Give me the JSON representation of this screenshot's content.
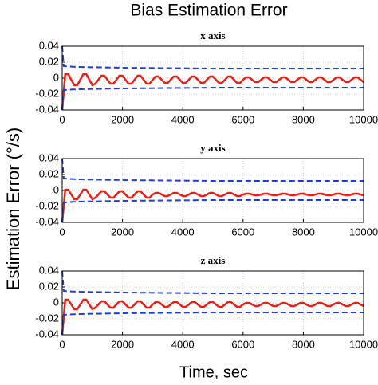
{
  "figure": {
    "title": "Bias Estimation Error",
    "ylabel": "Estimation Error (°/s)",
    "xlabel": "Time, sec"
  },
  "chart_data": [
    {
      "type": "line",
      "title": "x axis",
      "xlim": [
        0,
        10000
      ],
      "xticks": [
        0,
        2000,
        4000,
        6000,
        8000,
        10000
      ],
      "ylim": [
        -0.04,
        0.04
      ],
      "yticks": [
        -0.04,
        -0.02,
        0,
        0.02,
        0.04
      ],
      "grid": true,
      "series": [
        {
          "color": "#e8201a",
          "style": "solid",
          "x": [
            0,
            100,
            200,
            300,
            400,
            500,
            600,
            700,
            800,
            900,
            1000,
            1100,
            1200,
            1300,
            1400,
            1500,
            1600,
            1700,
            1800,
            1900,
            2000,
            2100,
            2200,
            2300,
            2400,
            2500,
            2600,
            2700,
            2800,
            2900,
            3000,
            3100,
            3200,
            3300,
            3400,
            3500,
            3600,
            3700,
            3800,
            3900,
            4000,
            4100,
            4200,
            4300,
            4400,
            4500,
            4600,
            4700,
            4800,
            4900,
            5000,
            5100,
            5200,
            5300,
            5400,
            5500,
            5600,
            5700,
            5800,
            5900,
            6000,
            6100,
            6200,
            6300,
            6400,
            6500,
            6600,
            6700,
            6800,
            6900,
            7000,
            7100,
            7200,
            7300,
            7400,
            7500,
            7600,
            7700,
            7800,
            7900,
            8000,
            8100,
            8200,
            8300,
            8400,
            8500,
            8600,
            8700,
            8800,
            8900,
            9000,
            9100,
            9200,
            9300,
            9400,
            9500,
            9600,
            9700,
            9800,
            9900,
            10000
          ],
          "values": [
            -0.04,
            0.005,
            0.005,
            -0.002,
            -0.009,
            -0.009,
            -0.002,
            0.005,
            0.005,
            -0.002,
            -0.009,
            -0.007,
            -0.002,
            0.003,
            0.003,
            -0.002,
            -0.007,
            -0.007,
            -0.002,
            0.003,
            0.003,
            -0.002,
            -0.007,
            -0.007,
            -0.002,
            0.003,
            0.003,
            -0.002,
            -0.007,
            -0.007,
            -0.002,
            0.002,
            0.002,
            -0.002,
            -0.006,
            -0.006,
            -0.002,
            0.002,
            0.002,
            -0.002,
            -0.006,
            -0.006,
            -0.002,
            0.002,
            0.002,
            -0.002,
            -0.006,
            -0.006,
            -0.002,
            0.002,
            0.002,
            -0.002,
            -0.006,
            -0.006,
            -0.002,
            0.002,
            0.002,
            -0.002,
            -0.006,
            -0.006,
            -0.002,
            0.001,
            0.001,
            -0.002,
            -0.005,
            -0.005,
            -0.002,
            0.001,
            0.001,
            -0.002,
            -0.005,
            -0.005,
            -0.002,
            0.001,
            0.001,
            -0.002,
            -0.005,
            -0.005,
            -0.002,
            0.001,
            0.001,
            -0.002,
            -0.005,
            -0.005,
            -0.002,
            0.001,
            0.001,
            -0.002,
            -0.005,
            -0.005,
            -0.002,
            0.001,
            0.001,
            -0.002,
            -0.005,
            -0.005,
            -0.002,
            0.001,
            0.001,
            -0.002,
            -0.005
          ]
        },
        {
          "color": "#1f3fd9",
          "style": "dashed",
          "x": [
            0,
            50,
            500,
            2000,
            5000,
            10000
          ],
          "values": [
            0.04,
            0.015,
            0.014,
            0.013,
            0.012,
            0.012
          ]
        },
        {
          "color": "#1f3fd9",
          "style": "dashed",
          "x": [
            0,
            50,
            500,
            2000,
            5000,
            10000
          ],
          "values": [
            -0.04,
            -0.015,
            -0.014,
            -0.013,
            -0.012,
            -0.012
          ]
        }
      ]
    },
    {
      "type": "line",
      "title": "y axis",
      "xlim": [
        0,
        10000
      ],
      "xticks": [
        0,
        2000,
        4000,
        6000,
        8000,
        10000
      ],
      "ylim": [
        -0.04,
        0.04
      ],
      "yticks": [
        -0.04,
        -0.02,
        0,
        0.02,
        0.04
      ],
      "grid": true,
      "series": [
        {
          "color": "#e8201a",
          "style": "solid",
          "x": [
            0,
            100,
            200,
            300,
            400,
            500,
            600,
            700,
            800,
            900,
            1000,
            1100,
            1200,
            1300,
            1400,
            1500,
            1600,
            1700,
            1800,
            1900,
            2000,
            2100,
            2200,
            2300,
            2400,
            2500,
            2600,
            2700,
            2800,
            2900,
            3000,
            3100,
            3200,
            3300,
            3400,
            3500,
            3600,
            3700,
            3800,
            3900,
            4000,
            4100,
            4200,
            4300,
            4400,
            4500,
            4600,
            4700,
            4800,
            4900,
            5000,
            5100,
            5200,
            5300,
            5400,
            5500,
            5600,
            5700,
            5800,
            5900,
            6000,
            6100,
            6200,
            6300,
            6400,
            6500,
            6600,
            6700,
            6800,
            6900,
            7000,
            7100,
            7200,
            7300,
            7400,
            7500,
            7600,
            7700,
            7800,
            7900,
            8000,
            8100,
            8200,
            8300,
            8400,
            8500,
            8600,
            8700,
            8800,
            8900,
            9000,
            9100,
            9200,
            9300,
            9400,
            9500,
            9600,
            9700,
            9800,
            9900,
            10000
          ],
          "values": [
            -0.04,
            0.001,
            0.001,
            -0.005,
            -0.011,
            -0.011,
            -0.005,
            0.001,
            0.001,
            -0.005,
            -0.011,
            -0.009,
            -0.005,
            -0.001,
            -0.001,
            -0.005,
            -0.009,
            -0.009,
            -0.005,
            -0.001,
            -0.001,
            -0.005,
            -0.009,
            -0.009,
            -0.005,
            -0.001,
            -0.001,
            -0.005,
            -0.009,
            -0.009,
            -0.005,
            -0.003,
            -0.003,
            -0.005,
            -0.007,
            -0.007,
            -0.005,
            -0.003,
            -0.003,
            -0.005,
            -0.007,
            -0.007,
            -0.005,
            -0.003,
            -0.003,
            -0.005,
            -0.007,
            -0.007,
            -0.005,
            -0.003,
            -0.003,
            -0.005,
            -0.007,
            -0.007,
            -0.005,
            -0.003,
            -0.003,
            -0.005,
            -0.007,
            -0.007,
            -0.005,
            -0.004,
            -0.004,
            -0.005,
            -0.006,
            -0.006,
            -0.005,
            -0.004,
            -0.004,
            -0.005,
            -0.006,
            -0.006,
            -0.005,
            -0.004,
            -0.004,
            -0.005,
            -0.006,
            -0.006,
            -0.005,
            -0.004,
            -0.004,
            -0.005,
            -0.006,
            -0.006,
            -0.005,
            -0.004,
            -0.004,
            -0.005,
            -0.006,
            -0.006,
            -0.005,
            -0.004,
            -0.004,
            -0.005,
            -0.006,
            -0.006,
            -0.005,
            -0.004,
            -0.004,
            -0.005,
            -0.006
          ]
        },
        {
          "color": "#1f3fd9",
          "style": "dashed",
          "x": [
            0,
            50,
            500,
            2000,
            5000,
            10000
          ],
          "values": [
            0.04,
            0.015,
            0.014,
            0.013,
            0.012,
            0.012
          ]
        },
        {
          "color": "#1f3fd9",
          "style": "dashed",
          "x": [
            0,
            50,
            500,
            2000,
            5000,
            10000
          ],
          "values": [
            -0.04,
            -0.015,
            -0.014,
            -0.013,
            -0.012,
            -0.012
          ]
        }
      ]
    },
    {
      "type": "line",
      "title": "z axis",
      "xlim": [
        0,
        10000
      ],
      "xticks": [
        0,
        2000,
        4000,
        6000,
        8000,
        10000
      ],
      "ylim": [
        -0.04,
        0.04
      ],
      "yticks": [
        -0.04,
        -0.02,
        0,
        0.02,
        0.04
      ],
      "grid": true,
      "series": [
        {
          "color": "#e8201a",
          "style": "solid",
          "x": [
            0,
            100,
            200,
            300,
            400,
            500,
            600,
            700,
            800,
            900,
            1000,
            1100,
            1200,
            1300,
            1400,
            1500,
            1600,
            1700,
            1800,
            1900,
            2000,
            2100,
            2200,
            2300,
            2400,
            2500,
            2600,
            2700,
            2800,
            2900,
            3000,
            3100,
            3200,
            3300,
            3400,
            3500,
            3600,
            3700,
            3800,
            3900,
            4000,
            4100,
            4200,
            4300,
            4400,
            4500,
            4600,
            4700,
            4800,
            4900,
            5000,
            5100,
            5200,
            5300,
            5400,
            5500,
            5600,
            5700,
            5800,
            5900,
            6000,
            6100,
            6200,
            6300,
            6400,
            6500,
            6600,
            6700,
            6800,
            6900,
            7000,
            7100,
            7200,
            7300,
            7400,
            7500,
            7600,
            7700,
            7800,
            7900,
            8000,
            8100,
            8200,
            8300,
            8400,
            8500,
            8600,
            8700,
            8800,
            8900,
            9000,
            9100,
            9200,
            9300,
            9400,
            9500,
            9600,
            9700,
            9800,
            9900,
            10000
          ],
          "values": [
            -0.04,
            0.004,
            0.004,
            -0.002,
            -0.008,
            -0.008,
            -0.002,
            0.004,
            0.004,
            -0.002,
            -0.008,
            -0.006,
            -0.002,
            0.002,
            0.002,
            -0.002,
            -0.006,
            -0.006,
            -0.002,
            0.002,
            0.002,
            -0.002,
            -0.006,
            -0.006,
            -0.002,
            0.002,
            0.002,
            -0.002,
            -0.006,
            -0.006,
            -0.002,
            0.001,
            0.001,
            -0.002,
            -0.005,
            -0.005,
            -0.002,
            0.001,
            0.001,
            -0.002,
            -0.005,
            -0.005,
            -0.002,
            0.001,
            0.001,
            -0.002,
            -0.005,
            -0.005,
            -0.002,
            0.001,
            0.001,
            -0.002,
            -0.005,
            -0.005,
            -0.002,
            0.001,
            0.001,
            -0.002,
            -0.005,
            -0.005,
            -0.002,
            0,
            0,
            -0.002,
            -0.004,
            -0.004,
            -0.002,
            0,
            0,
            -0.002,
            -0.004,
            -0.004,
            -0.002,
            0,
            0,
            -0.002,
            -0.004,
            -0.004,
            -0.002,
            0,
            0,
            -0.002,
            -0.004,
            -0.004,
            -0.002,
            0,
            0,
            -0.002,
            -0.004,
            -0.004,
            -0.002,
            0,
            0,
            -0.002,
            -0.004,
            -0.004,
            -0.002,
            0,
            0,
            -0.002,
            -0.004
          ]
        },
        {
          "color": "#1f3fd9",
          "style": "dashed",
          "x": [
            0,
            50,
            500,
            2000,
            5000,
            10000
          ],
          "values": [
            0.04,
            0.015,
            0.014,
            0.013,
            0.012,
            0.012
          ]
        },
        {
          "color": "#1f3fd9",
          "style": "dashed",
          "x": [
            0,
            50,
            500,
            2000,
            5000,
            10000
          ],
          "values": [
            -0.04,
            -0.015,
            -0.014,
            -0.013,
            -0.012,
            -0.012
          ]
        }
      ]
    }
  ]
}
